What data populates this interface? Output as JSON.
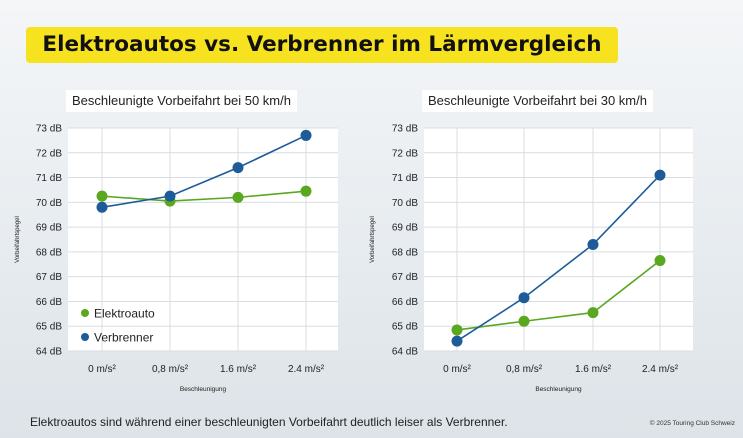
{
  "title": "Elektroautos vs. Verbrenner im Lärmvergleich",
  "footer": "Elektroautos sind während einer beschleunigten Vorbeifahrt deutlich leiser als Verbrenner.",
  "copyright": "© 2025 Touring Club Schweiz",
  "colors": {
    "elektro": "#5aa820",
    "verbrenner": "#1d5c99",
    "grid": "#d8dde2",
    "title_bg": "#f6e21f"
  },
  "chart_data": [
    {
      "type": "line",
      "title": "Beschleunigte Vorbeifahrt bei 50 km/h",
      "xlabel": "Beschleunigung",
      "ylabel": "Vorbeifahrtspegel",
      "categories": [
        "0 m/s²",
        "0,8 m/s²",
        "1.6 m/s²",
        "2.4 m/s²"
      ],
      "ylim": [
        64,
        73
      ],
      "yticks": [
        "64 dB",
        "65 dB",
        "66 dB",
        "67 dB",
        "68 dB",
        "69 dB",
        "70 dB",
        "71 dB",
        "72 dB",
        "73 dB"
      ],
      "legend": "bottom-left",
      "series": [
        {
          "name": "Elektroauto",
          "values": [
            70.25,
            70.05,
            70.2,
            70.45
          ]
        },
        {
          "name": "Verbrenner",
          "values": [
            69.8,
            70.25,
            71.4,
            72.7
          ]
        }
      ]
    },
    {
      "type": "line",
      "title": "Beschleunigte Vorbeifahrt bei 30 km/h",
      "xlabel": "Beschleunigung",
      "ylabel": "Vorbeifahrtspegel",
      "categories": [
        "0 m/s²",
        "0,8 m/s²",
        "1.6 m/s²",
        "2.4 m/s²"
      ],
      "ylim": [
        64,
        73
      ],
      "yticks": [
        "64 dB",
        "65 dB",
        "66 dB",
        "67 dB",
        "68 dB",
        "69 dB",
        "70 dB",
        "71 dB",
        "72 dB",
        "73 dB"
      ],
      "series": [
        {
          "name": "Elektroauto",
          "values": [
            64.85,
            65.2,
            65.55,
            67.65
          ]
        },
        {
          "name": "Verbrenner",
          "values": [
            64.4,
            66.15,
            68.3,
            71.1
          ]
        }
      ]
    }
  ]
}
